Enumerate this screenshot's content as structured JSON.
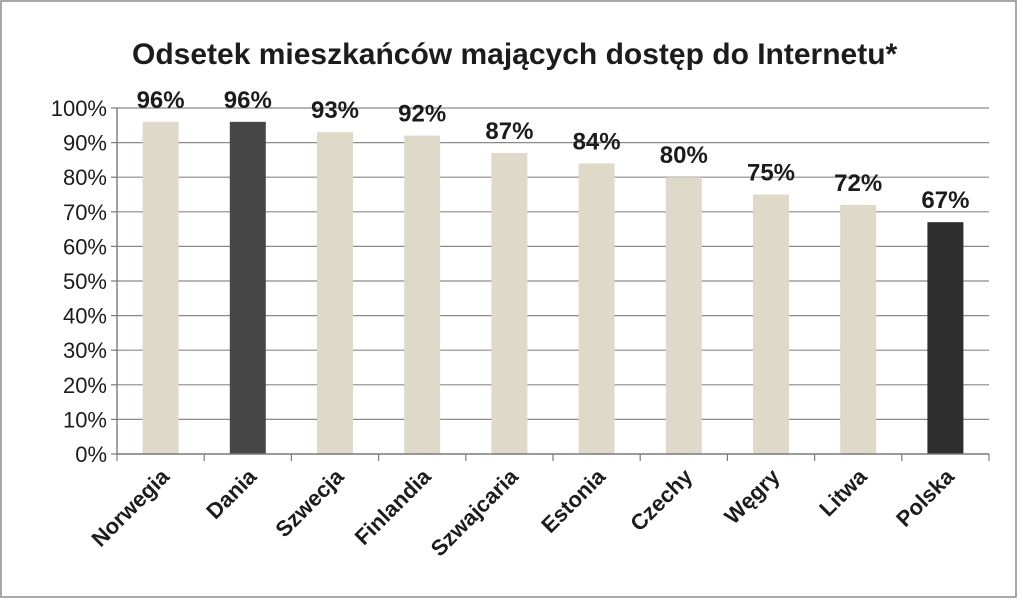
{
  "chart_data": {
    "type": "bar",
    "title": "Odsetek mieszkańców mających dostęp do Internetu*",
    "xlabel": "",
    "ylabel": "",
    "categories": [
      "Norwegia",
      "Dania",
      "Szwecja",
      "Finlandia",
      "Szwajcaria",
      "Estonia",
      "Czechy",
      "Węgry",
      "Litwa",
      "Polska"
    ],
    "values": [
      96,
      96,
      93,
      92,
      87,
      84,
      80,
      75,
      72,
      67
    ],
    "data_labels": [
      "96%",
      "96%",
      "93%",
      "92%",
      "87%",
      "84%",
      "80%",
      "75%",
      "72%",
      "67%"
    ],
    "bar_colors": [
      "#ded9c8",
      "#474747",
      "#ded9c8",
      "#ded9c8",
      "#ded9c8",
      "#ded9c8",
      "#ded9c8",
      "#ded9c8",
      "#ded9c8",
      "#2e2e2e"
    ],
    "ylim": [
      0,
      100
    ],
    "y_ticks": [
      0,
      10,
      20,
      30,
      40,
      50,
      60,
      70,
      80,
      90,
      100
    ],
    "y_tick_labels": [
      "0%",
      "10%",
      "20%",
      "30%",
      "40%",
      "50%",
      "60%",
      "70%",
      "80%",
      "90%",
      "100%"
    ],
    "grid": true,
    "legend": "none",
    "colors": {
      "grid": "#8a8a8a",
      "axis": "#7a7a7a",
      "border": "#8c8c8c",
      "text": "#1c1c1c"
    }
  }
}
